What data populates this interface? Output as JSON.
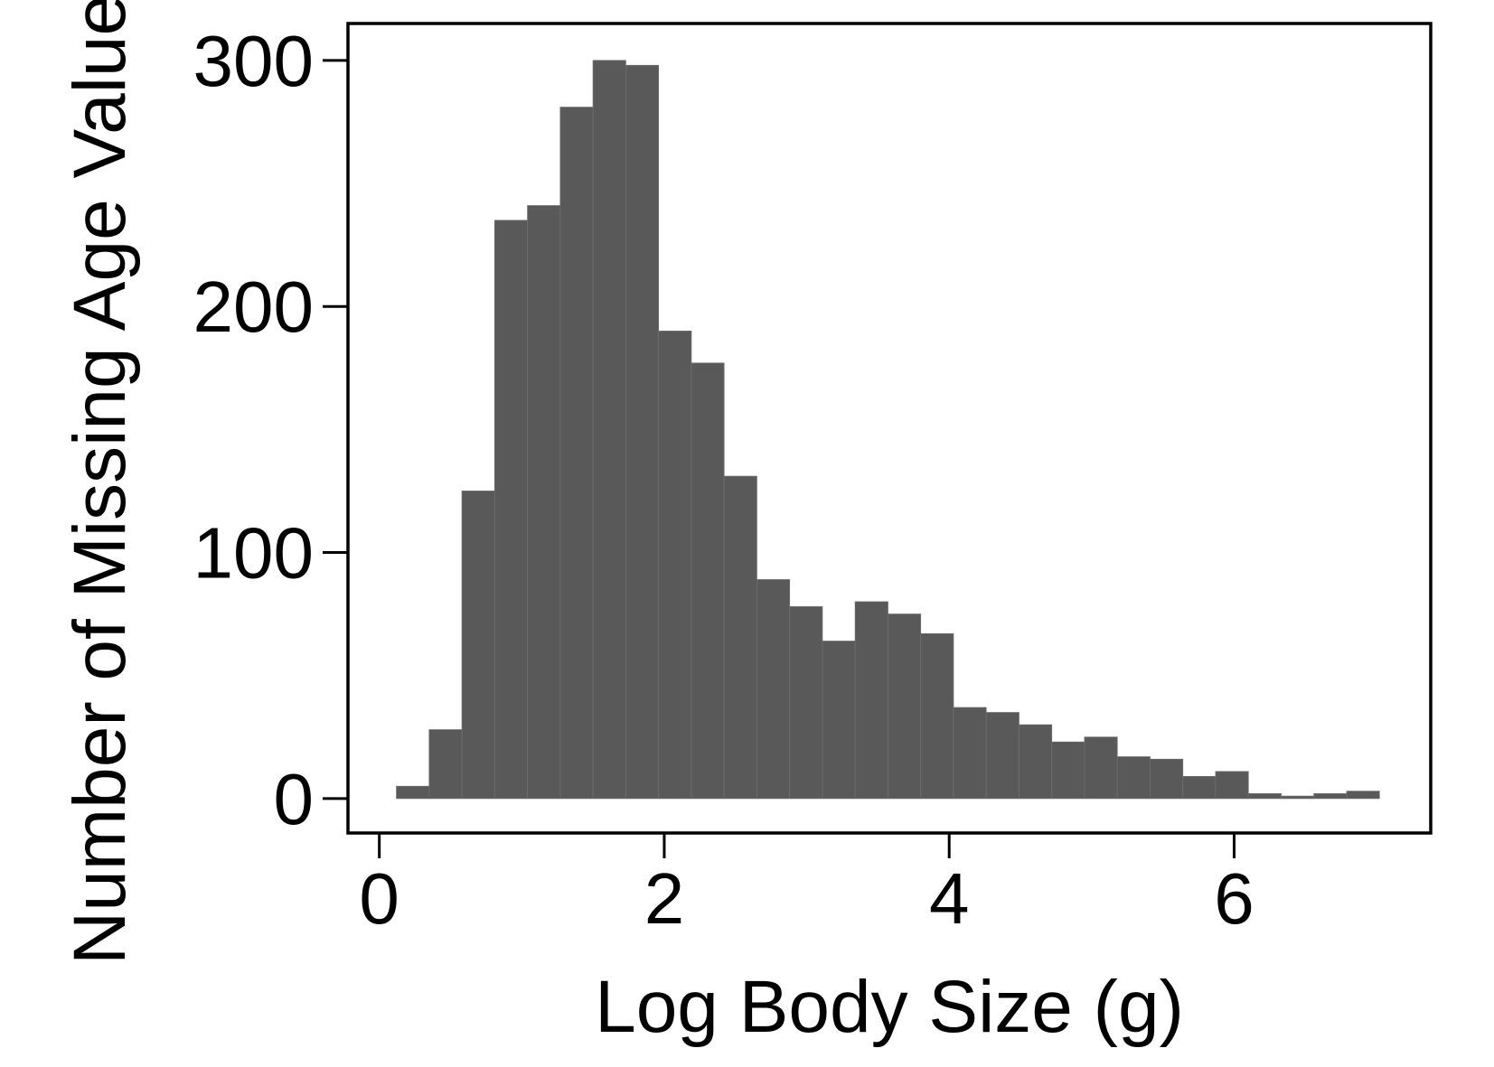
{
  "chart_data": {
    "type": "bar",
    "title": "",
    "xlabel": "Log Body Size (g)",
    "ylabel": "Number of Missing Age Values",
    "xlim": [
      -0.22,
      7.38
    ],
    "ylim": [
      -14,
      315
    ],
    "xticks": [
      0,
      2,
      4,
      6
    ],
    "yticks": [
      0,
      100,
      200,
      300
    ],
    "grid": false,
    "legend": "none",
    "bar_color": "#595959",
    "bin_edges": [
      0.12,
      0.35,
      0.58,
      0.81,
      1.04,
      1.27,
      1.5,
      1.73,
      1.96,
      2.19,
      2.42,
      2.65,
      2.88,
      3.11,
      3.34,
      3.57,
      3.8,
      4.03,
      4.26,
      4.49,
      4.72,
      4.95,
      5.18,
      5.41,
      5.64,
      5.87,
      6.1,
      6.33,
      6.56,
      6.79,
      7.02
    ],
    "values": [
      5,
      28,
      125,
      235,
      241,
      281,
      300,
      298,
      190,
      177,
      131,
      89,
      78,
      64,
      80,
      75,
      67,
      37,
      35,
      30,
      23,
      25,
      17,
      16,
      9,
      11,
      2,
      1,
      2,
      3
    ]
  }
}
